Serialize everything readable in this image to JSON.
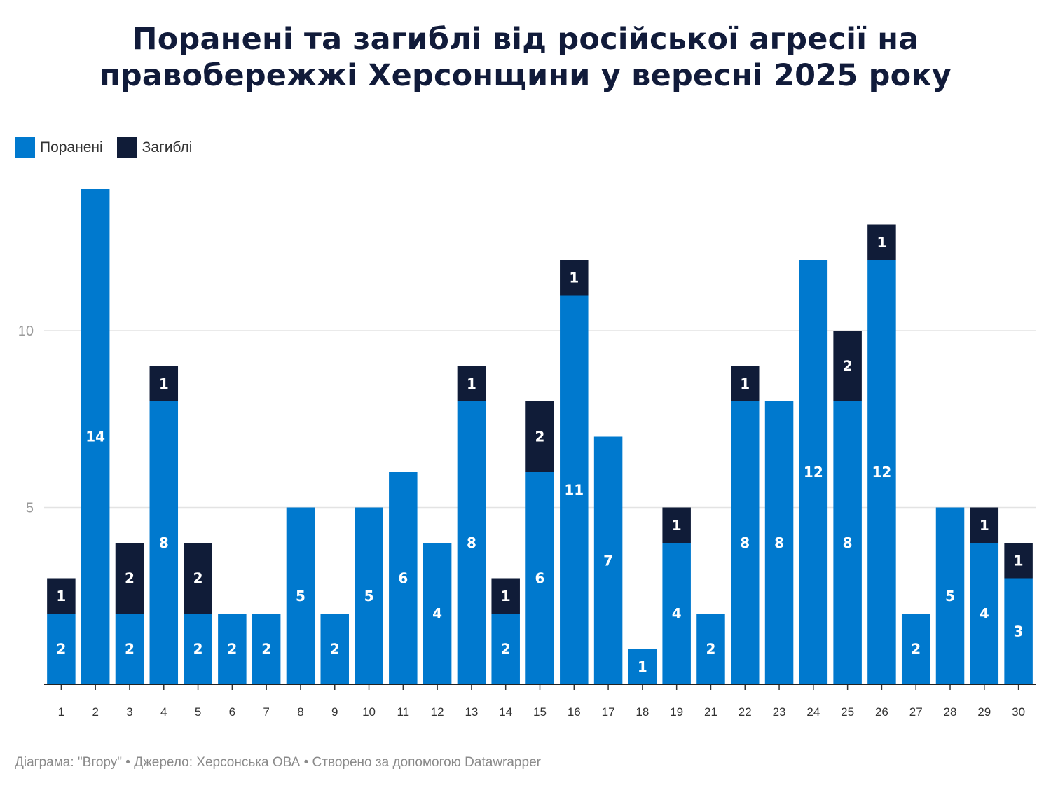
{
  "title_line1": "Поранені та загиблі від російської агресії на",
  "title_line2": "правобережжі Херсонщини у вересні 2025 року",
  "legend": [
    {
      "label": "Поранені",
      "color": "#0079ce"
    },
    {
      "label": "Загиблі",
      "color": "#101c38"
    }
  ],
  "footer": "Діаграма: \"Вгору\" • Джерело: Херсонська ОВА • Створено за допомогою Datawrapper",
  "chart_data": {
    "type": "bar",
    "stacked": true,
    "title": "Поранені та загиблі від російської агресії на правобережжі Херсонщини у вересні 2025 року",
    "xlabel": "",
    "ylabel": "",
    "categories": [
      "1",
      "2",
      "3",
      "4",
      "5",
      "6",
      "7",
      "8",
      "9",
      "10",
      "11",
      "12",
      "13",
      "14",
      "15",
      "16",
      "17",
      "18",
      "19",
      "21",
      "22",
      "23",
      "24",
      "25",
      "26",
      "27",
      "28",
      "29",
      "30"
    ],
    "series": [
      {
        "name": "Поранені",
        "color": "#0079ce",
        "values": [
          2,
          14,
          2,
          8,
          2,
          2,
          2,
          5,
          2,
          5,
          6,
          4,
          8,
          2,
          6,
          11,
          7,
          1,
          4,
          2,
          8,
          8,
          12,
          8,
          12,
          2,
          5,
          4,
          3
        ]
      },
      {
        "name": "Загиблі",
        "color": "#101c38",
        "values": [
          1,
          0,
          2,
          1,
          2,
          0,
          0,
          0,
          0,
          0,
          0,
          0,
          1,
          1,
          2,
          1,
          0,
          0,
          1,
          0,
          1,
          0,
          0,
          2,
          1,
          0,
          0,
          1,
          1
        ]
      }
    ],
    "yticks": [
      5,
      10
    ],
    "ylim": [
      0,
      14
    ],
    "grid": true,
    "legend_position": "top-left"
  }
}
